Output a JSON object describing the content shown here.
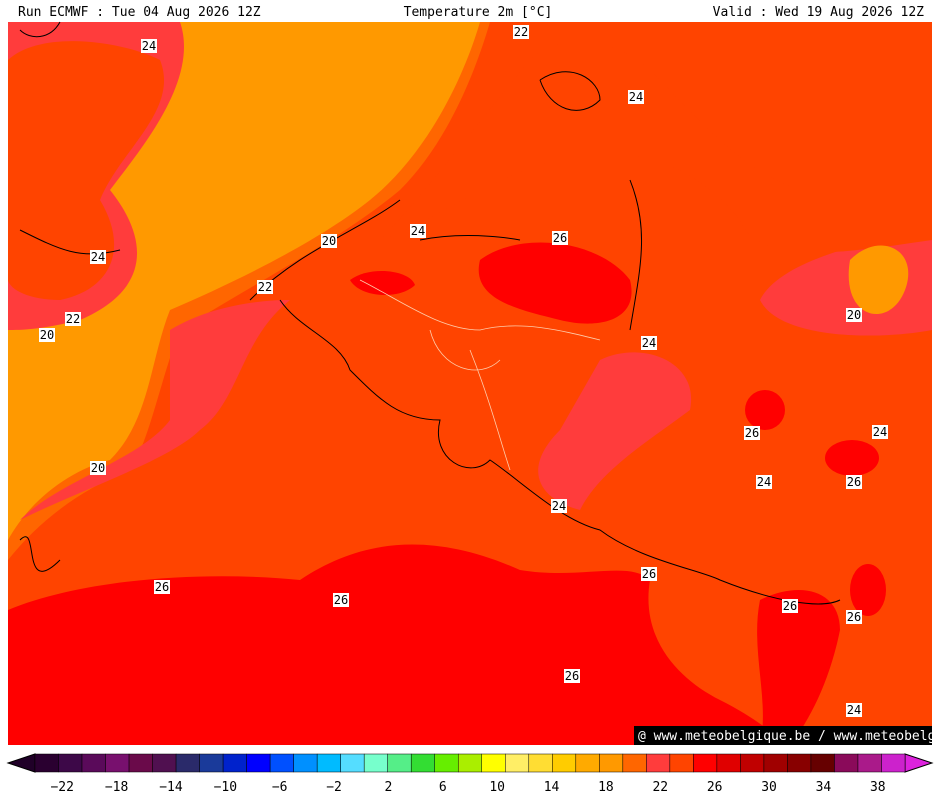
{
  "header": {
    "left": "Run ECMWF : Tue 04 Aug 2026 12Z",
    "center": "Temperature 2m [°C]",
    "right": "Valid : Wed 19 Aug 2026 12Z"
  },
  "map": {
    "contour_labels": [
      "24",
      "22",
      "24",
      "24",
      "20",
      "24",
      "26",
      "22",
      "22",
      "20",
      "20",
      "24",
      "20",
      "26",
      "24",
      "26",
      "24",
      "24",
      "26",
      "26",
      "26",
      "26",
      "26",
      "26",
      "24"
    ],
    "watermark": "@ www.meteobelgique.be / www.meteobelgie.be"
  },
  "colorbar": {
    "labels": [
      "−22",
      "−18",
      "−14",
      "−10",
      "−6",
      "−2",
      "2",
      "6",
      "10",
      "14",
      "18",
      "22",
      "26",
      "30",
      "34",
      "38"
    ],
    "colors": [
      "#2a0030",
      "#3d0848",
      "#5a0a5a",
      "#78106e",
      "#6a0a4a",
      "#501050",
      "#2a2a6a",
      "#1a3a9a",
      "#0022cc",
      "#0000ff",
      "#0050ff",
      "#0090ff",
      "#00bbff",
      "#55ddff",
      "#77ffcc",
      "#55ee88",
      "#33dd33",
      "#66ee00",
      "#aaee00",
      "#ffff00",
      "#ffee66",
      "#ffdd33",
      "#ffcc00",
      "#ffaa00",
      "#ff9900",
      "#ff6600",
      "#ff3c3c",
      "#ff4400",
      "#ff0000",
      "#e00000",
      "#c00000",
      "#a00000",
      "#880000",
      "#660000",
      "#8a0a5a",
      "#aa1a8a",
      "#cc22cc"
    ],
    "low_color": "#200028",
    "high_color": "#dd22dd"
  }
}
